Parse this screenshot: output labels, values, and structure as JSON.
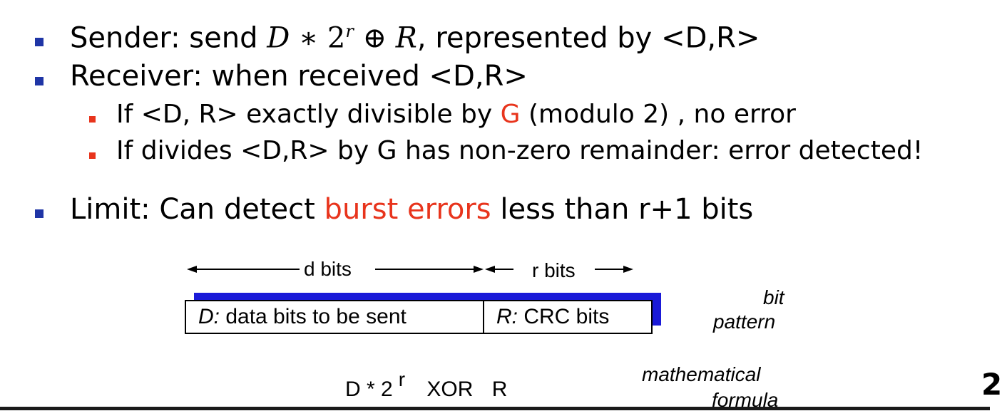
{
  "slide": {
    "sender": {
      "prefix": "Sender: send ",
      "formula_d": "D",
      "formula_op": " ∗ ",
      "formula_base": "2",
      "formula_exp": "r",
      "formula_xor": " ⊕ ",
      "formula_r": "R",
      "suffix": ", represented by <D,R>"
    },
    "receiver": "Receiver: when received <D,R>",
    "sub1": {
      "prefix": "If <D, R> exactly divisible by ",
      "g": "G",
      "suffix": " (modulo 2) , no error"
    },
    "sub2": "If divides <D,R> by G has non-zero remainder: error detected!",
    "limit": {
      "prefix": "Limit: Can detect ",
      "highlight": "burst errors",
      "suffix": " less than r+1 bits"
    },
    "page_number": "2"
  },
  "diagram": {
    "d_bits": "d bits",
    "r_bits": "r bits",
    "d_box_italic": "D:",
    "d_box_text": " data bits to be sent",
    "r_box_italic": "R:",
    "r_box_text": " CRC bits",
    "bit_pattern_1": "bit",
    "bit_pattern_2": "pattern",
    "formula_d": "D * 2",
    "formula_exp": "r",
    "formula_xor": "XOR",
    "formula_r": "R",
    "math_formula_1": "mathematical",
    "math_formula_2": "formula"
  },
  "colors": {
    "bullet": "#1f35a6",
    "accent_red": "#e8341c",
    "diagram_blue": "#1a1ad8"
  }
}
